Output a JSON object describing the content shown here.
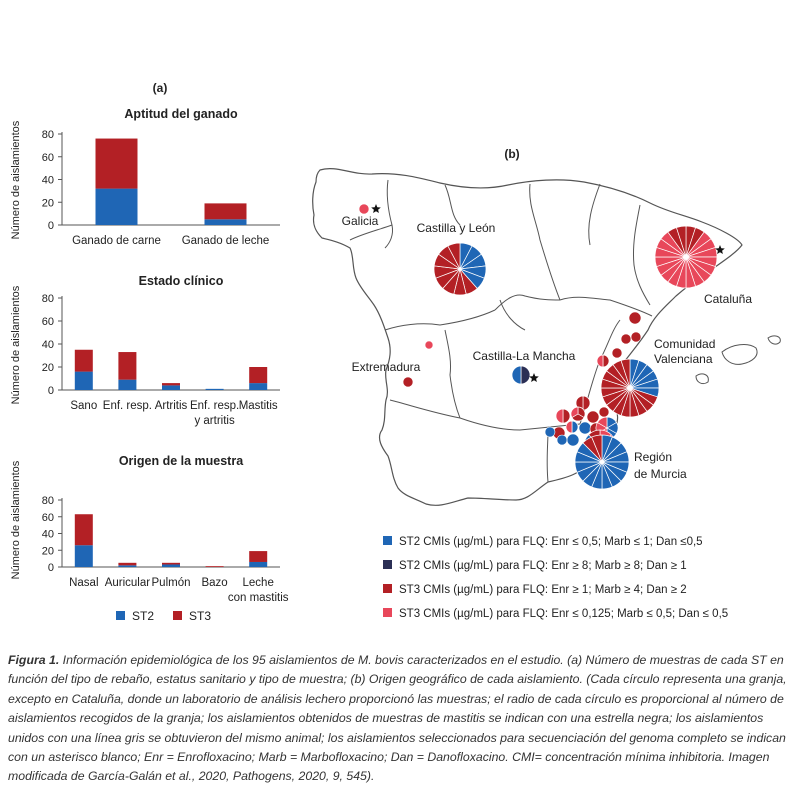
{
  "panel_a_label": "(a)",
  "panel_b_label": "(b)",
  "chart_data": [
    {
      "type": "bar",
      "stacked": true,
      "title": "Aptitud del ganado",
      "ylabel": "Número de aislamientos",
      "ylim": [
        0,
        80
      ],
      "yticks": [
        0,
        20,
        40,
        60,
        80
      ],
      "categories": [
        [
          "Ganado de carne"
        ],
        [
          "Ganado de leche"
        ]
      ],
      "series": [
        {
          "name": "ST2",
          "values": [
            32,
            5
          ]
        },
        {
          "name": "ST3",
          "values": [
            44,
            14
          ]
        }
      ]
    },
    {
      "type": "bar",
      "stacked": true,
      "title": "Estado clínico",
      "ylabel": "Número de aislamientos",
      "ylim": [
        0,
        80
      ],
      "yticks": [
        0,
        20,
        40,
        60,
        80
      ],
      "categories": [
        [
          "Sano"
        ],
        [
          "Enf. resp."
        ],
        [
          "Artritis"
        ],
        [
          "Enf. resp.",
          "y artritis"
        ],
        [
          "Mastitis"
        ]
      ],
      "series": [
        {
          "name": "ST2",
          "values": [
            16,
            9,
            4,
            1,
            6
          ]
        },
        {
          "name": "ST3",
          "values": [
            19,
            24,
            2,
            0,
            14
          ]
        }
      ]
    },
    {
      "type": "bar",
      "stacked": true,
      "title": "Origen de la muestra",
      "ylabel": "Número de aislamientos",
      "ylim": [
        0,
        80
      ],
      "yticks": [
        0,
        20,
        40,
        60,
        80
      ],
      "categories": [
        [
          "Nasal"
        ],
        [
          "Auricular"
        ],
        [
          "Pulmón"
        ],
        [
          "Bazo"
        ],
        [
          "Leche",
          "con mastitis"
        ]
      ],
      "series": [
        {
          "name": "ST2",
          "values": [
            26,
            2,
            3,
            0,
            6
          ]
        },
        {
          "name": "ST3",
          "values": [
            37,
            3,
            2,
            1,
            13
          ]
        }
      ]
    }
  ],
  "legend_a": [
    {
      "label": "ST2",
      "color": "#1f66b5"
    },
    {
      "label": "ST3",
      "color": "#b32025"
    }
  ],
  "map": {
    "regions": [
      {
        "name": "Galicia"
      },
      {
        "name": "Castilla y León"
      },
      {
        "name": "Cataluña"
      },
      {
        "name": "Comunidad",
        "name2": "Valenciana"
      },
      {
        "name": "Castilla-La Mancha"
      },
      {
        "name": "Extremadura"
      },
      {
        "name": "Región",
        "name2": "de Murcia"
      }
    ],
    "legend": [
      {
        "label": "ST2 CMIs (µg/mL) para FLQ: Enr  ≤ 0,5; Marb ≤ 1; Dan ≤0,5",
        "color": "#1f66b5"
      },
      {
        "label": "ST2 CMIs (µg/mL) para FLQ: Enr  ≥ 8; Marb ≥ 8; Dan ≥ 1",
        "color": "#2b2f55"
      },
      {
        "label": "ST3 CMIs (µg/mL) para FLQ: Enr  ≥ 1; Marb ≥ 4; Dan ≥ 2",
        "color": "#b32025"
      },
      {
        "label": "ST3 CMIs (µg/mL) para FLQ: Enr  ≤ 0,125; Marb ≤ 0,5; Dan ≤ 0,5",
        "color": "#e8475a"
      }
    ]
  },
  "caption": {
    "label": "Figura 1.",
    "text": "Información epidemiológica de los 95 aislamientos de M. bovis caracterizados en el estudio. (a) Número de muestras de cada ST en función del tipo de rebaño, estatus sanitario y tipo de muestra; (b) Origen geográfico de cada aislamiento. (Cada círculo representa una granja, excepto en Cataluña, donde un laboratorio de análisis lechero proporcionó las muestras; el radio de cada círculo es proporcional al número de aislamientos recogidos de la granja; los aislamientos obtenidos de muestras de mastitis se indican con una estrella negra; los aislamientos unidos con una línea gris se obtuvieron del mismo animal; los aislamientos seleccionados para secuenciación del genoma completo se indican con un asterisco blanco; Enr = Enrofloxacino; Marb = Marbofloxacino; Dan = Danofloxacino. CMI= concentración mínima inhibitoria. Imagen modificada de García-Galán et al., 2020, Pathogens, 2020, 9, 545)."
  }
}
